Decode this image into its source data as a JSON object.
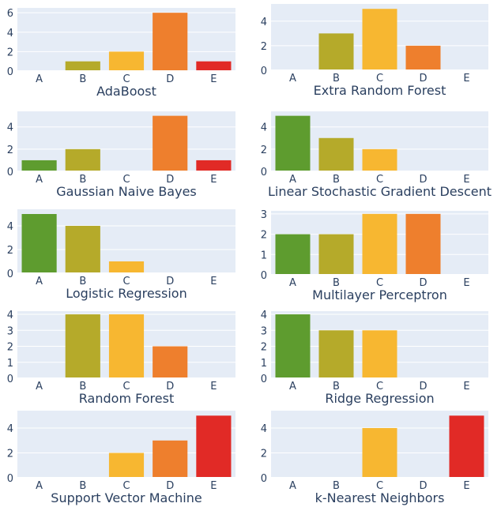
{
  "colors": {
    "A": "#5e9c2f",
    "B": "#b5aa2a",
    "C": "#f7b731",
    "D": "#ee7f2d",
    "E": "#e12a26",
    "plot_bg": "#e5ecf6",
    "text": "#2a3f5f"
  },
  "chart_data": [
    {
      "type": "bar",
      "title": "AdaBoost",
      "categories": [
        "A",
        "B",
        "C",
        "D",
        "E"
      ],
      "values": [
        0,
        1,
        2,
        6,
        1
      ],
      "ylim": [
        0,
        6.5
      ],
      "yticks": [
        0,
        2,
        4,
        6
      ]
    },
    {
      "type": "bar",
      "title": "Extra Random Forest",
      "categories": [
        "A",
        "B",
        "C",
        "D",
        "E"
      ],
      "values": [
        0,
        3,
        5,
        2,
        0
      ],
      "ylim": [
        0,
        5.4
      ],
      "yticks": [
        0,
        2,
        4
      ]
    },
    {
      "type": "bar",
      "title": "Gaussian Naive Bayes",
      "categories": [
        "A",
        "B",
        "C",
        "D",
        "E"
      ],
      "values": [
        1,
        2,
        0,
        5,
        1
      ],
      "ylim": [
        0,
        5.4
      ],
      "yticks": [
        0,
        2,
        4
      ]
    },
    {
      "type": "bar",
      "title": "Linear Stochastic Gradient Descent",
      "categories": [
        "A",
        "B",
        "C",
        "D",
        "E"
      ],
      "values": [
        5,
        3,
        2,
        0,
        0
      ],
      "ylim": [
        0,
        5.4
      ],
      "yticks": [
        0,
        2,
        4
      ]
    },
    {
      "type": "bar",
      "title": "Logistic Regression",
      "categories": [
        "A",
        "B",
        "C",
        "D",
        "E"
      ],
      "values": [
        5,
        4,
        1,
        0,
        0
      ],
      "ylim": [
        0,
        5.4
      ],
      "yticks": [
        0,
        2,
        4
      ]
    },
    {
      "type": "bar",
      "title": "Multilayer Perceptron",
      "categories": [
        "A",
        "B",
        "C",
        "D",
        "E"
      ],
      "values": [
        2,
        2,
        3,
        3,
        0
      ],
      "ylim": [
        0,
        3.15
      ],
      "yticks": [
        0,
        1,
        2,
        3
      ]
    },
    {
      "type": "bar",
      "title": "Random Forest",
      "categories": [
        "A",
        "B",
        "C",
        "D",
        "E"
      ],
      "values": [
        0,
        4,
        4,
        2,
        0
      ],
      "ylim": [
        0,
        4.2
      ],
      "yticks": [
        0,
        1,
        2,
        3,
        4
      ]
    },
    {
      "type": "bar",
      "title": "Ridge Regression",
      "categories": [
        "A",
        "B",
        "C",
        "D",
        "E"
      ],
      "values": [
        4,
        3,
        3,
        0,
        0
      ],
      "ylim": [
        0,
        4.2
      ],
      "yticks": [
        0,
        1,
        2,
        3,
        4
      ]
    },
    {
      "type": "bar",
      "title": "Support Vector Machine",
      "categories": [
        "A",
        "B",
        "C",
        "D",
        "E"
      ],
      "values": [
        0,
        0,
        2,
        3,
        5
      ],
      "ylim": [
        0,
        5.4
      ],
      "yticks": [
        0,
        2,
        4
      ]
    },
    {
      "type": "bar",
      "title": "k-Nearest Neighbors",
      "categories": [
        "A",
        "B",
        "C",
        "D",
        "E"
      ],
      "values": [
        0,
        0,
        4,
        0,
        5
      ],
      "ylim": [
        0,
        5.4
      ],
      "yticks": [
        0,
        2,
        4
      ]
    }
  ]
}
